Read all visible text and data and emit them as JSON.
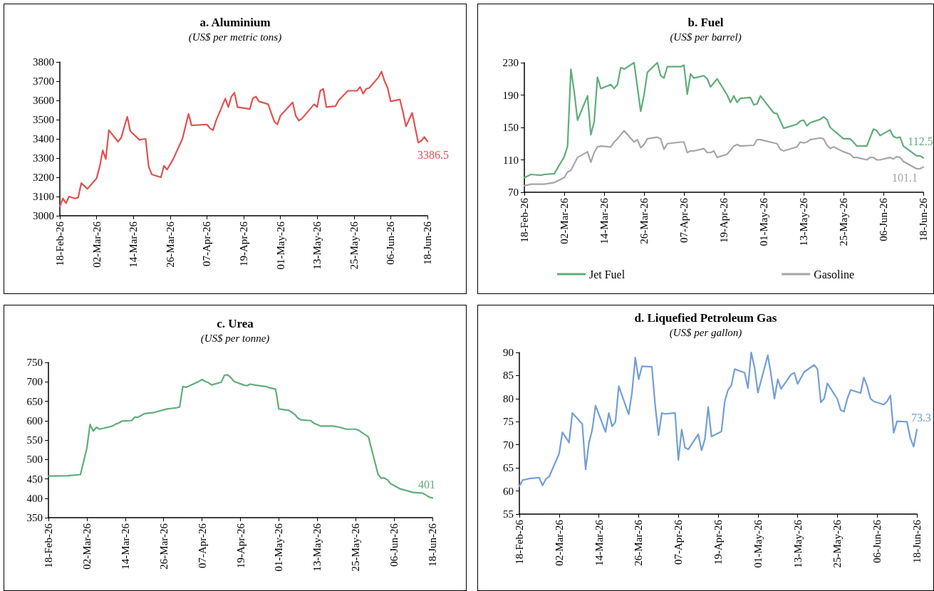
{
  "chart_data": [
    {
      "type": "line",
      "title": "a. Aluminium",
      "subtitle": "(US$ per metric tons)",
      "marker": "none",
      "line_style": "solid",
      "grid": false,
      "x": [
        "--02-18",
        "--02-19",
        "--02-20",
        "--02-21",
        "--02-23",
        "--02-24",
        "--02-25",
        "--02-26",
        "--02-27",
        "--03-02",
        "--03-03",
        "--03-04",
        "--03-05",
        "--03-06",
        "--03-09",
        "--03-10",
        "--03-12",
        "--03-13",
        "--03-16",
        "--03-18",
        "--03-19",
        "--03-20",
        "--03-23",
        "--03-24",
        "--03-25",
        "--03-27",
        "--03-30",
        "--04-01",
        "--04-02",
        "--04-07",
        "--04-08",
        "--04-09",
        "--04-10",
        "--04-13",
        "--04-14",
        "--04-15",
        "--04-16",
        "--04-17",
        "--04-21",
        "--04-22",
        "--04-23",
        "--04-24",
        "--04-27",
        "--04-28",
        "--04-29",
        "--04-30",
        "--05-01",
        "--05-05",
        "--05-06",
        "--05-07",
        "--05-08",
        "--05-12",
        "--05-13",
        "--05-14",
        "--05-15",
        "--05-16",
        "--05-19",
        "--05-20",
        "--05-23",
        "--05-26",
        "--05-27",
        "--05-28",
        "--05-29",
        "--05-30",
        "--06-02",
        "--06-03",
        "--06-04",
        "--06-05",
        "--06-06",
        "--06-09",
        "--06-10",
        "--06-11",
        "--06-13",
        "--06-15",
        "--06-16",
        "--06-17",
        "--06-18"
      ],
      "series": [
        {
          "color": "#e0524f",
          "values": [
            3050,
            3090,
            3065,
            3100,
            3090,
            3095,
            3170,
            3155,
            3140,
            3195,
            3255,
            3340,
            3295,
            3445,
            3385,
            3405,
            3515,
            3440,
            3395,
            3400,
            3255,
            3215,
            3200,
            3260,
            3240,
            3295,
            3400,
            3530,
            3470,
            3475,
            3455,
            3445,
            3495,
            3610,
            3565,
            3620,
            3640,
            3565,
            3555,
            3610,
            3620,
            3595,
            3580,
            3535,
            3490,
            3475,
            3520,
            3590,
            3520,
            3495,
            3505,
            3580,
            3565,
            3650,
            3660,
            3565,
            3570,
            3600,
            3650,
            3650,
            3670,
            3635,
            3660,
            3665,
            3720,
            3750,
            3700,
            3665,
            3595,
            3605,
            3540,
            3465,
            3535,
            3380,
            3390,
            3410,
            3386.5
          ]
        }
      ],
      "xlim": [
        "--02-18",
        "--06-18"
      ],
      "xticks": [
        {
          "value": "--02-18",
          "label": "18-Feb-26"
        },
        {
          "value": "--03-02",
          "label": "02-Mar-26"
        },
        {
          "value": "--03-14",
          "label": "14-Mar-26"
        },
        {
          "value": "--03-26",
          "label": "26-Mar-26"
        },
        {
          "value": "--04-07",
          "label": "07-Apr-26"
        },
        {
          "value": "--04-19",
          "label": "19-Apr-26"
        },
        {
          "value": "--05-01",
          "label": "01-May-26"
        },
        {
          "value": "--05-13",
          "label": "13-May-26"
        },
        {
          "value": "--05-25",
          "label": "25-May-26"
        },
        {
          "value": "--06-06",
          "label": "06-Jun-26"
        },
        {
          "value": "--06-18",
          "label": "18-Jun-26"
        }
      ],
      "ylim": [
        3000,
        3800
      ],
      "yticks": [
        3000,
        3100,
        3200,
        3300,
        3400,
        3500,
        3600,
        3700,
        3800
      ],
      "annotations": [
        {
          "text": "3386.5",
          "x": "--06-18",
          "y": 3386.5
        }
      ]
    },
    {
      "type": "line",
      "title": "b. Fuel",
      "subtitle": "(US$ per barrel)",
      "marker": "none",
      "line_style": "solid",
      "grid": false,
      "legend": "bottom",
      "series": [
        {
          "name": "Jet Fuel",
          "color": "#5fae7a",
          "x": [
            "--02-18",
            "--02-20",
            "--02-23",
            "--02-24",
            "--02-27",
            "--03-02",
            "--03-03",
            "--03-04",
            "--03-05",
            "--03-06",
            "--03-09",
            "--03-10",
            "--03-11",
            "--03-12",
            "--03-13",
            "--03-16",
            "--03-17",
            "--03-18",
            "--03-19",
            "--03-20",
            "--03-23",
            "--03-25",
            "--03-26",
            "--03-27",
            "--03-30",
            "--03-31",
            "--04-01",
            "--04-02",
            "--04-06",
            "--04-07",
            "--04-08",
            "--04-09",
            "--04-10",
            "--04-13",
            "--04-14",
            "--04-15",
            "--04-17",
            "--04-20",
            "--04-21",
            "--04-22",
            "--04-23",
            "--04-24",
            "--04-27",
            "--04-28",
            "--04-29",
            "--04-30",
            "--05-04",
            "--05-05",
            "--05-07",
            "--05-11",
            "--05-12",
            "--05-13",
            "--05-14",
            "--05-15",
            "--05-18",
            "--05-19",
            "--05-20",
            "--05-21",
            "--05-25",
            "--05-27",
            "--05-28",
            "--05-29",
            "--06-01",
            "--06-03",
            "--06-04",
            "--06-05",
            "--06-08",
            "--06-09",
            "--06-10",
            "--06-11",
            "--06-12",
            "--06-16",
            "--06-17",
            "--06-18"
          ],
          "values": [
            88,
            92,
            91,
            92,
            93,
            114,
            127,
            222,
            194,
            159,
            189,
            141,
            157,
            212,
            198,
            203,
            198,
            203,
            224,
            222,
            230,
            170,
            190,
            218,
            230,
            214,
            211,
            225,
            225,
            227,
            191,
            216,
            211,
            214,
            210,
            200,
            210,
            190,
            181,
            189,
            181,
            186,
            187,
            178,
            179,
            189,
            168,
            167,
            149,
            154,
            158,
            159,
            152,
            156,
            160,
            163,
            160,
            150,
            136,
            136,
            132,
            127,
            127,
            148,
            146,
            140,
            147,
            139,
            137,
            138,
            127,
            115,
            115,
            112.5
          ]
        },
        {
          "name": "Gasoline",
          "color": "#a6a6a6",
          "x": [
            "--02-18",
            "--02-20",
            "--02-24",
            "--02-27",
            "--02-28",
            "--03-02",
            "--03-03",
            "--03-04",
            "--03-06",
            "--03-09",
            "--03-10",
            "--03-11",
            "--03-12",
            "--03-13",
            "--03-16",
            "--03-17",
            "--03-18",
            "--03-20",
            "--03-23",
            "--03-24",
            "--03-25",
            "--03-26",
            "--03-27",
            "--03-30",
            "--03-31",
            "--04-01",
            "--04-02",
            "--04-06",
            "--04-07",
            "--04-08",
            "--04-09",
            "--04-10",
            "--04-13",
            "--04-14",
            "--04-15",
            "--04-16",
            "--04-17",
            "--04-20",
            "--04-22",
            "--04-23",
            "--04-24",
            "--04-28",
            "--04-29",
            "--04-30",
            "--05-05",
            "--05-06",
            "--05-07",
            "--05-11",
            "--05-12",
            "--05-13",
            "--05-14",
            "--05-15",
            "--05-18",
            "--05-19",
            "--05-20",
            "--05-21",
            "--05-22",
            "--05-25",
            "--05-27",
            "--05-28",
            "--05-29",
            "--06-01",
            "--06-02",
            "--06-03",
            "--06-04",
            "--06-05",
            "--06-08",
            "--06-09",
            "--06-10",
            "--06-11",
            "--06-12",
            "--06-16",
            "--06-17",
            "--06-18"
          ],
          "values": [
            78,
            80,
            80,
            82,
            84,
            88,
            95,
            97,
            113,
            120,
            107,
            119,
            126,
            127,
            126,
            132,
            136,
            146,
            132,
            135,
            125,
            129,
            136,
            138,
            136,
            123,
            130,
            132,
            132,
            119,
            121,
            121,
            124,
            119,
            119,
            121,
            113,
            117,
            127,
            129,
            127,
            128,
            135,
            135,
            130,
            123,
            121,
            126,
            132,
            131,
            132,
            135,
            137,
            136,
            128,
            124,
            126,
            120,
            117,
            113,
            113,
            110,
            113,
            113,
            110,
            110,
            113,
            111,
            114,
            113,
            108,
            99,
            99,
            101.1
          ]
        }
      ],
      "xlim": [
        "--02-18",
        "--06-18"
      ],
      "xticks": [
        {
          "value": "--02-18",
          "label": "18-Feb-26"
        },
        {
          "value": "--03-02",
          "label": "02-Mar-26"
        },
        {
          "value": "--03-14",
          "label": "14-Mar-26"
        },
        {
          "value": "--03-26",
          "label": "26-Mar-26"
        },
        {
          "value": "--04-07",
          "label": "07-Apr-26"
        },
        {
          "value": "--04-19",
          "label": "19-Apr-26"
        },
        {
          "value": "--05-01",
          "label": "01-May-26"
        },
        {
          "value": "--05-13",
          "label": "13-May-26"
        },
        {
          "value": "--05-25",
          "label": "25-May-26"
        },
        {
          "value": "--06-06",
          "label": "06-Jun-26"
        },
        {
          "value": "--06-18",
          "label": "18-Jun-26"
        }
      ],
      "ylim": [
        70,
        230
      ],
      "yticks": [
        70,
        110,
        150,
        190,
        230
      ],
      "annotations": [
        {
          "text": "112.5",
          "x": "--06-18",
          "y": 112.5
        },
        {
          "text": "101.1",
          "x": "--06-18",
          "y": 101.1
        }
      ]
    },
    {
      "type": "line",
      "title": "c. Urea",
      "subtitle": "(US$ per tonne)",
      "marker": "none",
      "line_style": "solid",
      "grid": false,
      "x": [
        "--02-18",
        "--02-24",
        "--02-28",
        "--03-02",
        "--03-03",
        "--03-04",
        "--03-05",
        "--03-06",
        "--03-09",
        "--03-10",
        "--03-11",
        "--03-12",
        "--03-13",
        "--03-16",
        "--03-17",
        "--03-18",
        "--03-20",
        "--03-23",
        "--03-27",
        "--03-30",
        "--03-31",
        "--04-01",
        "--04-02",
        "--04-06",
        "--04-07",
        "--04-08",
        "--04-09",
        "--04-10",
        "--04-13",
        "--04-14",
        "--04-15",
        "--04-16",
        "--04-17",
        "--04-20",
        "--04-21",
        "--04-22",
        "--04-24",
        "--04-27",
        "--04-28",
        "--04-30",
        "--05-01",
        "--05-04",
        "--05-05",
        "--05-06",
        "--05-07",
        "--05-08",
        "--05-11",
        "--05-12",
        "--05-13",
        "--05-14",
        "--05-18",
        "--05-20",
        "--05-22",
        "--05-25",
        "--05-26",
        "--05-27",
        "--05-29",
        "--06-01",
        "--06-02",
        "--06-03",
        "--06-04",
        "--06-05",
        "--06-08",
        "--06-12",
        "--06-15",
        "--06-16",
        "--06-17",
        "--06-18"
      ],
      "series": [
        {
          "color": "#5fae7a",
          "values": [
            457,
            458,
            461,
            529,
            590,
            573,
            583,
            578,
            584,
            586,
            591,
            594,
            599,
            600,
            609,
            609,
            618,
            621,
            630,
            633,
            635,
            688,
            686,
            701,
            706,
            701,
            698,
            692,
            699,
            717,
            718,
            711,
            701,
            692,
            690,
            694,
            691,
            688,
            685,
            681,
            630,
            627,
            622,
            616,
            606,
            602,
            600,
            593,
            590,
            586,
            586,
            583,
            578,
            578,
            575,
            569,
            558,
            462,
            452,
            452,
            447,
            437,
            424,
            415,
            413,
            408,
            403,
            401
          ]
        }
      ],
      "xlim": [
        "--02-18",
        "--06-18"
      ],
      "xticks": [
        {
          "value": "--02-18",
          "label": "18-Feb-26"
        },
        {
          "value": "--03-02",
          "label": "02-Mar-26"
        },
        {
          "value": "--03-14",
          "label": "14-Mar-26"
        },
        {
          "value": "--03-26",
          "label": "26-Mar-26"
        },
        {
          "value": "--04-07",
          "label": "07-Apr-26"
        },
        {
          "value": "--04-19",
          "label": "19-Apr-26"
        },
        {
          "value": "--05-01",
          "label": "01-May-26"
        },
        {
          "value": "--05-13",
          "label": "13-May-26"
        },
        {
          "value": "--05-25",
          "label": "25-May-26"
        },
        {
          "value": "--06-06",
          "label": "06-Jun-26"
        },
        {
          "value": "--06-18",
          "label": "18-Jun-26"
        }
      ],
      "ylim": [
        350,
        750
      ],
      "yticks": [
        350,
        400,
        450,
        500,
        550,
        600,
        650,
        700,
        750
      ],
      "annotations": [
        {
          "text": "401",
          "x": "--06-18",
          "y": 401
        }
      ]
    },
    {
      "type": "line",
      "title": "d. Liquefied Petroleum Gas",
      "subtitle": "(US$ per gallon)",
      "marker": "none",
      "line_style": "solid",
      "grid": false,
      "x": [
        "--02-18",
        "--02-19",
        "--02-20",
        "--02-21",
        "--02-24",
        "--02-25",
        "--02-26",
        "--02-27",
        "--03-02",
        "--03-03",
        "--03-05",
        "--03-06",
        "--03-09",
        "--03-10",
        "--03-11",
        "--03-12",
        "--03-13",
        "--03-16",
        "--03-17",
        "--03-18",
        "--03-19",
        "--03-20",
        "--03-23",
        "--03-24",
        "--03-25",
        "--03-26",
        "--03-27",
        "--03-30",
        "--03-31",
        "--04-01",
        "--04-02",
        "--04-03",
        "--04-06",
        "--04-07",
        "--04-08",
        "--04-09",
        "--04-10",
        "--04-13",
        "--04-14",
        "--04-15",
        "--04-16",
        "--04-17",
        "--04-20",
        "--04-21",
        "--04-22",
        "--04-23",
        "--04-24",
        "--04-27",
        "--04-28",
        "--04-29",
        "--04-30",
        "--05-01",
        "--05-04",
        "--05-05",
        "--05-06",
        "--05-07",
        "--05-08",
        "--05-11",
        "--05-12",
        "--05-13",
        "--05-15",
        "--05-18",
        "--05-19",
        "--05-20",
        "--05-21",
        "--05-22",
        "--05-25",
        "--05-26",
        "--05-27",
        "--05-28",
        "--05-29",
        "--06-01",
        "--06-02",
        "--06-03",
        "--06-04",
        "--06-05",
        "--06-08",
        "--06-09",
        "--06-10",
        "--06-11",
        "--06-12",
        "--06-15",
        "--06-16",
        "--06-17",
        "--06-18"
      ],
      "series": [
        {
          "color": "#729fd6",
          "values": [
            61.0,
            62.4,
            62.5,
            62.7,
            62.9,
            61.2,
            62.6,
            63.1,
            68.1,
            72.7,
            70.5,
            76.9,
            74.5,
            64.7,
            70.4,
            73.3,
            78.5,
            72.8,
            76.9,
            74.0,
            75.0,
            82.7,
            76.6,
            81.3,
            88.9,
            84.2,
            87.0,
            86.9,
            78.5,
            72.1,
            76.9,
            76.7,
            76.9,
            66.7,
            73.3,
            69.4,
            69.0,
            72.3,
            68.8,
            71.2,
            78.2,
            71.8,
            72.9,
            79.4,
            81.9,
            82.9,
            86.4,
            85.6,
            82.3,
            90.0,
            86.7,
            81.3,
            89.4,
            85.1,
            80.0,
            84.2,
            82.1,
            85.2,
            85.6,
            83.2,
            85.8,
            87.3,
            86.4,
            79.2,
            80.0,
            83.3,
            79.9,
            77.5,
            77.2,
            80.0,
            81.9,
            81.2,
            84.6,
            82.7,
            80.0,
            79.4,
            78.7,
            79.4,
            80.7,
            72.6,
            75.1,
            75.0,
            71.5,
            69.6,
            73.3
          ]
        }
      ],
      "xlim": [
        "--02-18",
        "--06-18"
      ],
      "xticks": [
        {
          "value": "--02-18",
          "label": "18-Feb-26"
        },
        {
          "value": "--03-02",
          "label": "02-Mar-26"
        },
        {
          "value": "--03-14",
          "label": "14-Mar-26"
        },
        {
          "value": "--03-26",
          "label": "26-Mar-26"
        },
        {
          "value": "--04-07",
          "label": "07-Apr-26"
        },
        {
          "value": "--04-19",
          "label": "19-Apr-26"
        },
        {
          "value": "--05-01",
          "label": "01-May-26"
        },
        {
          "value": "--05-13",
          "label": "13-May-26"
        },
        {
          "value": "--05-25",
          "label": "25-May-26"
        },
        {
          "value": "--06-06",
          "label": "06-Jun-26"
        },
        {
          "value": "--06-18",
          "label": "18-Jun-26"
        }
      ],
      "ylim": [
        55,
        90
      ],
      "yticks": [
        55,
        60,
        65,
        70,
        75,
        80,
        85,
        90
      ],
      "annotations": [
        {
          "text": "73.3",
          "x": "--06-18",
          "y": 73.3
        }
      ]
    }
  ]
}
